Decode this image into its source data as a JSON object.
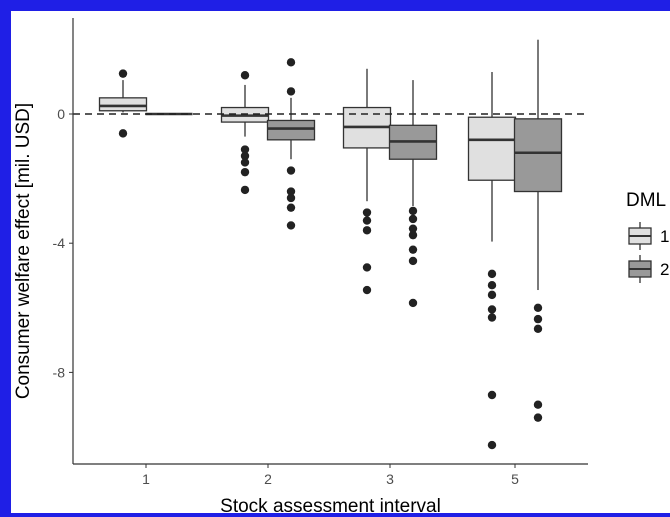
{
  "chart_data": {
    "type": "boxplot",
    "xlabel": "Stock assessment interval",
    "ylabel": "Consumer welfare effect [mil. USD]",
    "categories": [
      "1",
      "2",
      "3",
      "5"
    ],
    "y_ticks": [
      0,
      -4,
      -8
    ],
    "y_tick_labels": [
      "0",
      "-4",
      "-8"
    ],
    "ylim": [
      -10.9,
      2.9
    ],
    "reference_line": 0,
    "grid": false,
    "legend": {
      "title": "DML",
      "position": "right",
      "entries": [
        "1",
        "2"
      ]
    },
    "colors": {
      "1": "#e0e0e0",
      "2": "#999999",
      "frame": "#1f1fe6",
      "stroke": "#333333"
    },
    "series": [
      {
        "name": "1",
        "boxes": [
          {
            "category": "1",
            "lower": 0.05,
            "q1": 0.1,
            "median": 0.25,
            "q3": 0.5,
            "upper": 1.05,
            "outliers": [
              1.25,
              -0.6
            ]
          },
          {
            "category": "2",
            "lower": -0.7,
            "q1": -0.25,
            "median": -0.05,
            "q3": 0.2,
            "upper": 0.9,
            "outliers": [
              1.2,
              -1.1,
              -1.3,
              -1.5,
              -1.8,
              -2.35
            ]
          },
          {
            "category": "3",
            "lower": -2.7,
            "q1": -1.05,
            "median": -0.4,
            "q3": 0.2,
            "upper": 1.4,
            "outliers": [
              -3.05,
              -3.3,
              -3.6,
              -4.75,
              -5.45
            ]
          },
          {
            "category": "5",
            "lower": -3.95,
            "q1": -2.05,
            "median": -0.8,
            "q3": -0.1,
            "upper": 1.3,
            "outliers": [
              -4.95,
              -5.3,
              -5.6,
              -6.05,
              -6.3,
              -8.7,
              -10.25
            ]
          }
        ]
      },
      {
        "name": "2",
        "boxes": [
          {
            "category": "1",
            "lower": 0.0,
            "q1": 0.0,
            "median": 0.0,
            "q3": 0.0,
            "upper": 0.0,
            "outliers": []
          },
          {
            "category": "2",
            "lower": -1.4,
            "q1": -0.8,
            "median": -0.45,
            "q3": -0.2,
            "upper": 0.5,
            "outliers": [
              1.6,
              0.7,
              -1.75,
              -2.4,
              -2.6,
              -2.9,
              -3.45
            ]
          },
          {
            "category": "3",
            "lower": -2.85,
            "q1": -1.4,
            "median": -0.85,
            "q3": -0.35,
            "upper": 1.05,
            "outliers": [
              -3.0,
              -3.25,
              -3.55,
              -3.75,
              -4.2,
              -4.55,
              -5.85
            ]
          },
          {
            "category": "5",
            "lower": -5.45,
            "q1": -2.4,
            "median": -1.2,
            "q3": -0.15,
            "upper": 2.3,
            "outliers": [
              -6.0,
              -6.35,
              -6.65,
              -9.0,
              -9.4
            ]
          }
        ]
      }
    ]
  }
}
